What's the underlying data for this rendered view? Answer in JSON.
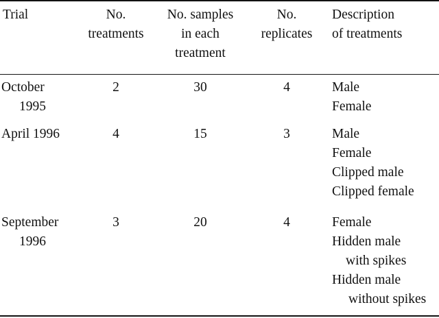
{
  "headers": {
    "trial": "Trial",
    "treatments": [
      "No.",
      "treatments"
    ],
    "samples": [
      "No. samples",
      "in each",
      "treatment"
    ],
    "replicates": [
      "No.",
      "replicates"
    ],
    "description": [
      "Description",
      "of treatments"
    ]
  },
  "rows": [
    {
      "trial": [
        "October",
        "1995"
      ],
      "treatments": "2",
      "samples": "30",
      "replicates": "4",
      "description": [
        "Male",
        "Female"
      ]
    },
    {
      "trial": [
        "April 1996"
      ],
      "treatments": "4",
      "samples": "15",
      "replicates": "3",
      "description": [
        "Male",
        "Female",
        "Clipped male",
        "Clipped female"
      ]
    },
    {
      "trial": [
        "September",
        "1996"
      ],
      "treatments": "3",
      "samples": "20",
      "replicates": "4",
      "description": [
        "Female",
        "Hidden male",
        "with spikes",
        "Hidden male",
        "without spikes"
      ]
    }
  ]
}
